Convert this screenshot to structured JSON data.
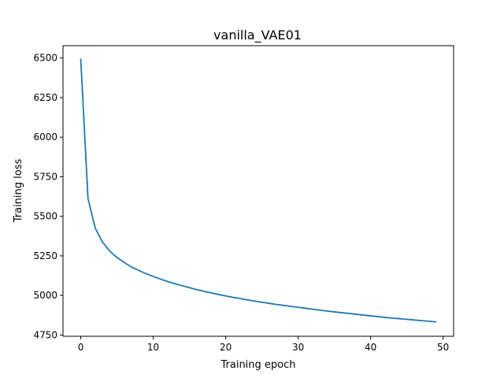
{
  "chart_data": {
    "type": "line",
    "title": "vanilla_VAE01",
    "xlabel": "Training epoch",
    "ylabel": "Training loss",
    "xlim": [
      -2.45,
      51.45
    ],
    "ylim": [
      4742,
      6578
    ],
    "xticks": [
      0,
      10,
      20,
      30,
      40,
      50
    ],
    "yticks": [
      4750,
      5000,
      5250,
      5500,
      5750,
      6000,
      6250,
      6500
    ],
    "grid": false,
    "legend": "none",
    "series": [
      {
        "color": "#1f77b4",
        "x": [
          0,
          1,
          2,
          3,
          4,
          5,
          6,
          7,
          8,
          9,
          10,
          11,
          12,
          13,
          14,
          15,
          16,
          17,
          18,
          19,
          20,
          21,
          22,
          23,
          24,
          25,
          26,
          27,
          28,
          29,
          30,
          31,
          32,
          33,
          34,
          35,
          36,
          37,
          38,
          39,
          40,
          41,
          42,
          43,
          44,
          45,
          46,
          47,
          48,
          49
        ],
        "y": [
          6492,
          5612,
          5425,
          5337,
          5280,
          5240,
          5208,
          5180,
          5158,
          5138,
          5120,
          5103,
          5088,
          5074,
          5061,
          5049,
          5037,
          5026,
          5016,
          5006,
          4997,
          4988,
          4980,
          4972,
          4964,
          4957,
          4950,
          4943,
          4937,
          4931,
          4925,
          4919,
          4913,
          4907,
          4901,
          4896,
          4891,
          4886,
          4881,
          4876,
          4871,
          4866,
          4861,
          4857,
          4853,
          4849,
          4845,
          4841,
          4837,
          4833
        ]
      }
    ]
  }
}
